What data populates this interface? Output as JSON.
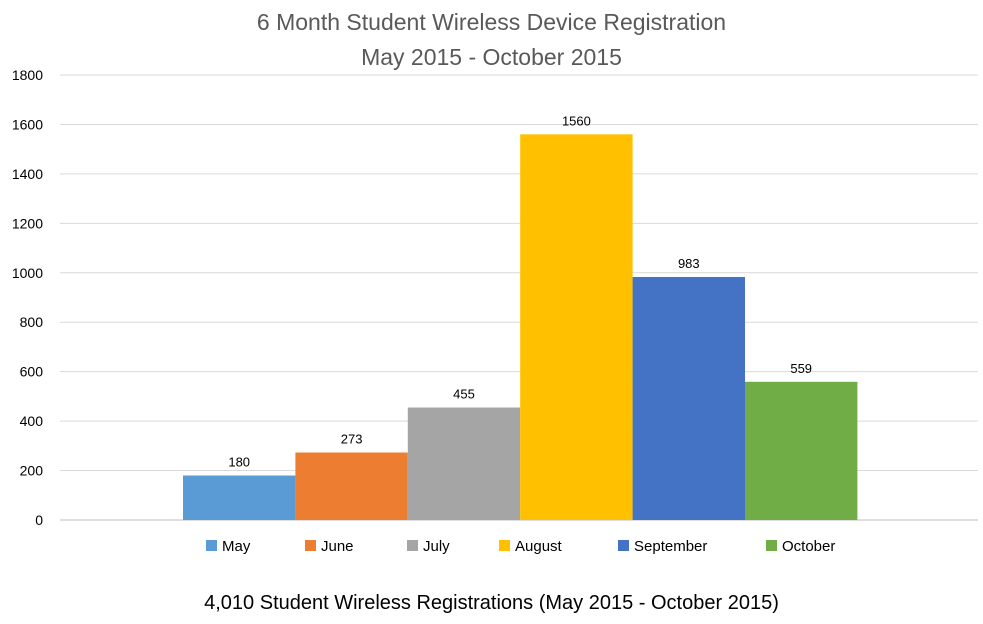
{
  "chart_data": {
    "type": "bar",
    "title": "6 Month Student Wireless Device Registration",
    "subtitle": "May 2015 - October 2015",
    "categories": [
      "May",
      "June",
      "July",
      "August",
      "September",
      "October"
    ],
    "values": [
      180,
      273,
      455,
      1560,
      983,
      559
    ],
    "colors": [
      "#5B9BD5",
      "#ED7D31",
      "#A5A5A5",
      "#FFC000",
      "#4472C4",
      "#70AD47"
    ],
    "ylim": [
      0,
      1800
    ],
    "yticks": [
      0,
      200,
      400,
      600,
      800,
      1000,
      1200,
      1400,
      1600,
      1800
    ],
    "grid": true,
    "legend": "bottom",
    "data_labels": true
  },
  "footer": "4,010 Student Wireless Registrations (May 2015 - October 2015)"
}
